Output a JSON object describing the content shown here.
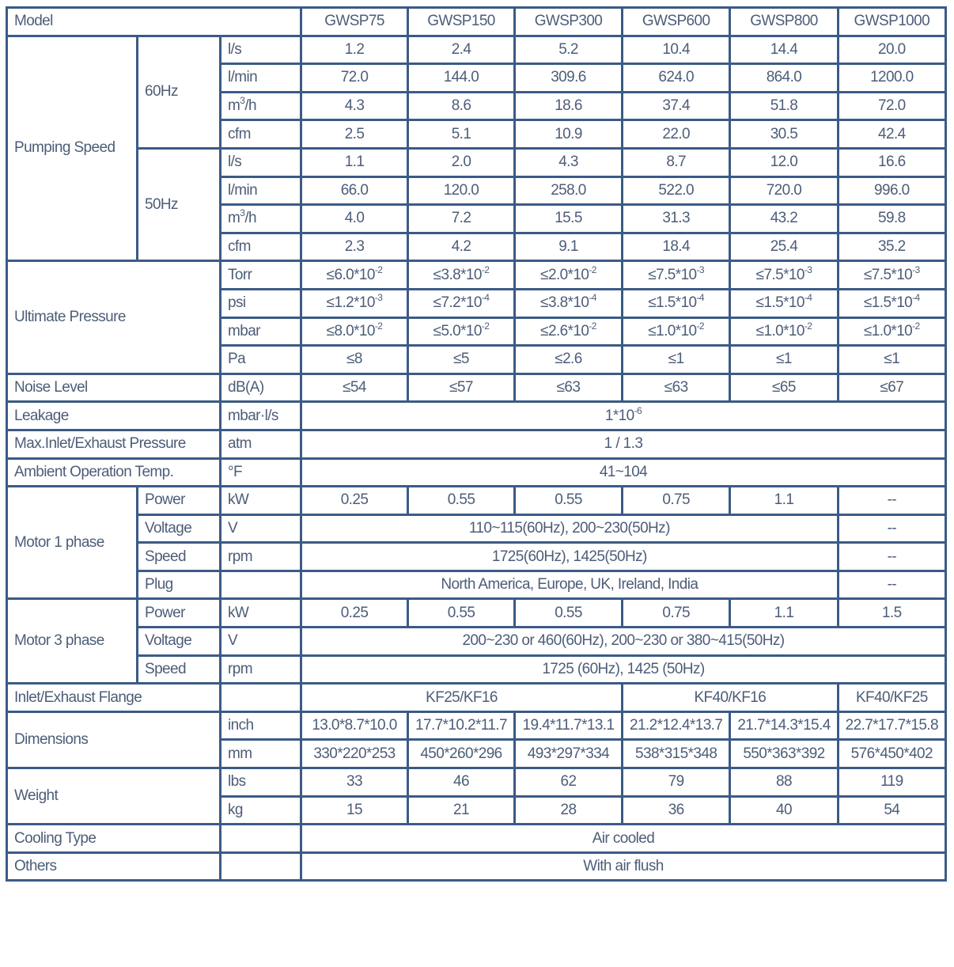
{
  "colors": {
    "border": "#3b5b86",
    "text": "#4d5d78"
  },
  "rows": [
    [
      {
        "t": "Model",
        "cs": 3
      },
      "GWSP75",
      "GWSP150",
      "GWSP300",
      "GWSP600",
      "GWSP800",
      "GWSP1000"
    ],
    [
      {
        "t": "Pumping Speed",
        "rs": 8
      },
      {
        "t": "60Hz",
        "rs": 4
      },
      "l/s",
      "1.2",
      "2.4",
      "5.2",
      "10.4",
      "14.4",
      "20.0"
    ],
    [
      "l/min",
      "72.0",
      "144.0",
      "309.6",
      "624.0",
      "864.0",
      "1200.0"
    ],
    [
      {
        "b": "m",
        "e": "3",
        "a": "/h"
      },
      "4.3",
      "8.6",
      "18.6",
      "37.4",
      "51.8",
      "72.0"
    ],
    [
      "cfm",
      "2.5",
      "5.1",
      "10.9",
      "22.0",
      "30.5",
      "42.4"
    ],
    [
      {
        "t": "50Hz",
        "rs": 4
      },
      "l/s",
      "1.1",
      "2.0",
      "4.3",
      "8.7",
      "12.0",
      "16.6"
    ],
    [
      "l/min",
      "66.0",
      "120.0",
      "258.0",
      "522.0",
      "720.0",
      "996.0"
    ],
    [
      {
        "b": "m",
        "e": "3",
        "a": "/h"
      },
      "4.0",
      "7.2",
      "15.5",
      "31.3",
      "43.2",
      "59.8"
    ],
    [
      "cfm",
      "2.3",
      "4.2",
      "9.1",
      "18.4",
      "25.4",
      "35.2"
    ],
    [
      {
        "t": "Ultimate Pressure",
        "cs": 2,
        "rs": 4
      },
      "Torr",
      {
        "b": "≤6.0*10",
        "e": "-2"
      },
      {
        "b": "≤3.8*10",
        "e": "-2"
      },
      {
        "b": "≤2.0*10",
        "e": "-2"
      },
      {
        "b": "≤7.5*10",
        "e": "-3"
      },
      {
        "b": "≤7.5*10",
        "e": "-3"
      },
      {
        "b": "≤7.5*10",
        "e": "-3"
      }
    ],
    [
      "psi",
      {
        "b": "≤1.2*10",
        "e": "-3"
      },
      {
        "b": "≤7.2*10",
        "e": "-4"
      },
      {
        "b": "≤3.8*10",
        "e": "-4"
      },
      {
        "b": "≤1.5*10",
        "e": "-4"
      },
      {
        "b": "≤1.5*10",
        "e": "-4"
      },
      {
        "b": "≤1.5*10",
        "e": "-4"
      }
    ],
    [
      "mbar",
      {
        "b": "≤8.0*10",
        "e": "-2"
      },
      {
        "b": "≤5.0*10",
        "e": "-2"
      },
      {
        "b": "≤2.6*10",
        "e": "-2"
      },
      {
        "b": "≤1.0*10",
        "e": "-2"
      },
      {
        "b": "≤1.0*10",
        "e": "-2"
      },
      {
        "b": "≤1.0*10",
        "e": "-2"
      }
    ],
    [
      "Pa",
      "≤8",
      "≤5",
      "≤2.6",
      "≤1",
      "≤1",
      "≤1"
    ],
    [
      {
        "t": "Noise Level",
        "cs": 2
      },
      "dB(A)",
      "≤54",
      "≤57",
      "≤63",
      "≤63",
      "≤65",
      "≤67"
    ],
    [
      {
        "t": "Leakage",
        "cs": 2
      },
      "mbar·l/s",
      {
        "b": "1*10",
        "e": "-6",
        "cs": 6
      }
    ],
    [
      {
        "t": "Max.Inlet/Exhaust Pressure",
        "cs": 2
      },
      "atm",
      {
        "t": "1 / 1.3",
        "cs": 6
      }
    ],
    [
      {
        "t": "Ambient Operation Temp.",
        "cs": 2
      },
      "°F",
      {
        "t": "41~104",
        "cs": 6
      }
    ],
    [
      {
        "t": "Motor 1 phase",
        "rs": 4
      },
      "Power",
      "kW",
      "0.25",
      "0.55",
      "0.55",
      "0.75",
      "1.1",
      "--"
    ],
    [
      "Voltage",
      "V",
      {
        "t": "110~115(60Hz), 200~230(50Hz)",
        "cs": 5
      },
      "--"
    ],
    [
      "Speed",
      "rpm",
      {
        "t": "1725(60Hz), 1425(50Hz)",
        "cs": 5
      },
      "--"
    ],
    [
      "Plug",
      "",
      {
        "t": "North America, Europe, UK, Ireland, India",
        "cs": 5
      },
      "--"
    ],
    [
      {
        "t": "Motor 3 phase",
        "rs": 3
      },
      "Power",
      "kW",
      "0.25",
      "0.55",
      "0.55",
      "0.75",
      "1.1",
      "1.5"
    ],
    [
      "Voltage",
      "V",
      {
        "t": "200~230 or 460(60Hz), 200~230 or 380~415(50Hz)",
        "cs": 6
      }
    ],
    [
      "Speed",
      "rpm",
      {
        "t": "1725 (60Hz), 1425 (50Hz)",
        "cs": 6
      }
    ],
    [
      {
        "t": "Inlet/Exhaust Flange",
        "cs": 2
      },
      "",
      {
        "t": "KF25/KF16",
        "cs": 3
      },
      {
        "t": "KF40/KF16",
        "cs": 2
      },
      "KF40/KF25"
    ],
    [
      {
        "t": "Dimensions",
        "cs": 2,
        "rs": 2
      },
      "inch",
      "13.0*8.7*10.0",
      "17.7*10.2*11.7",
      "19.4*11.7*13.1",
      "21.2*12.4*13.7",
      "21.7*14.3*15.4",
      "22.7*17.7*15.8"
    ],
    [
      "mm",
      "330*220*253",
      "450*260*296",
      "493*297*334",
      "538*315*348",
      "550*363*392",
      "576*450*402"
    ],
    [
      {
        "t": "Weight",
        "cs": 2,
        "rs": 2
      },
      "lbs",
      "33",
      "46",
      "62",
      "79",
      "88",
      "119"
    ],
    [
      "kg",
      "15",
      "21",
      "28",
      "36",
      "40",
      "54"
    ],
    [
      {
        "t": "Cooling Type",
        "cs": 2
      },
      "",
      {
        "t": "Air cooled",
        "cs": 6
      }
    ],
    [
      {
        "t": "Others",
        "cs": 2
      },
      "",
      {
        "t": "With air flush",
        "cs": 6
      }
    ]
  ]
}
